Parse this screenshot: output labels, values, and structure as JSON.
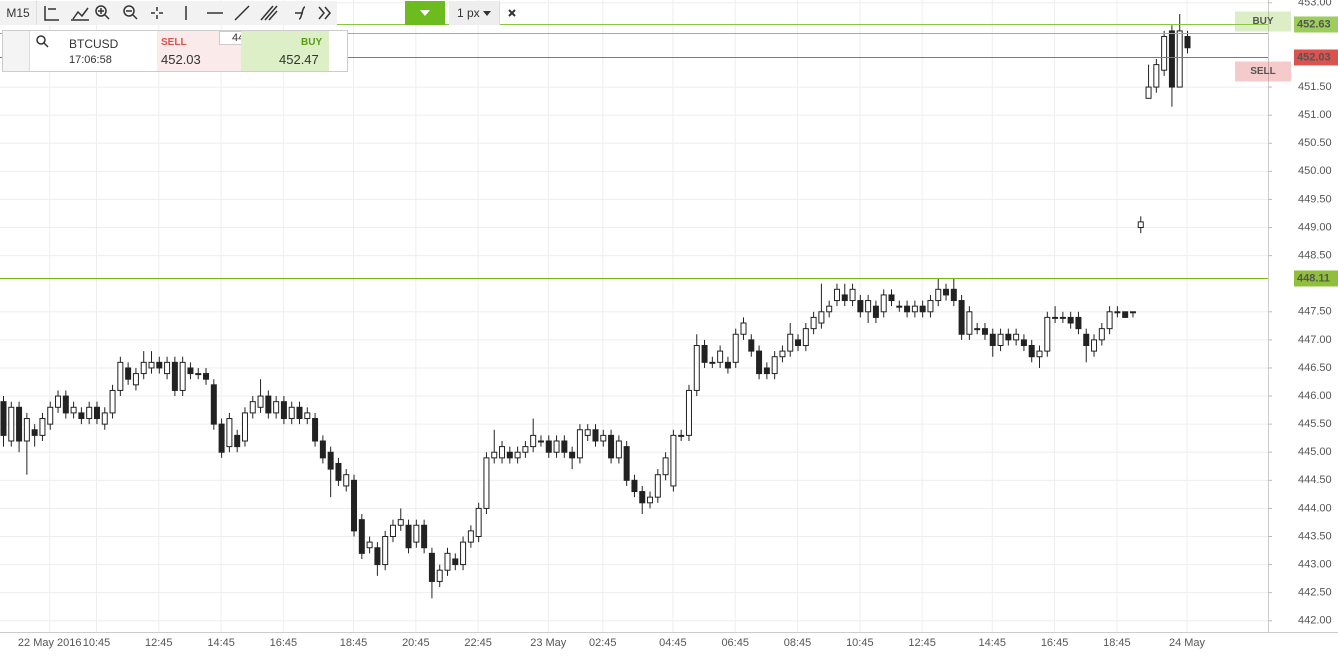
{
  "toolbar": {
    "timeframe": "M15",
    "line_width": "1 px"
  },
  "order_panel": {
    "symbol": "BTCUSD",
    "time": "17:06:58",
    "sell_label": "SELL",
    "sell_price": "452.03",
    "quantity": "44",
    "buy_label": "BUY",
    "buy_price": "452.47"
  },
  "chart_data": {
    "type": "candlestick",
    "up_color": "#ffffff",
    "down_color": "#222222",
    "grid": true,
    "categories": [
      null,
      null,
      null,
      null,
      null,
      null,
      "22 May 2016",
      null,
      null,
      null,
      null,
      null,
      "10:45",
      null,
      null,
      null,
      null,
      null,
      null,
      null,
      "12:45",
      null,
      null,
      null,
      null,
      null,
      null,
      null,
      "14:45",
      null,
      null,
      null,
      null,
      null,
      null,
      null,
      "16:45",
      null,
      null,
      null,
      null,
      null,
      null,
      null,
      null,
      "18:45",
      null,
      null,
      null,
      null,
      null,
      null,
      null,
      "20:45",
      null,
      null,
      null,
      null,
      null,
      null,
      null,
      "22:45",
      null,
      null,
      null,
      null,
      null,
      null,
      null,
      null,
      "23 May",
      null,
      null,
      null,
      null,
      null,
      null,
      "02:45",
      null,
      null,
      null,
      null,
      null,
      null,
      null,
      null,
      "04:45",
      null,
      null,
      null,
      null,
      null,
      null,
      null,
      "06:45",
      null,
      null,
      null,
      null,
      null,
      null,
      null,
      "08:45",
      null,
      null,
      null,
      null,
      null,
      null,
      null,
      "10:45",
      null,
      null,
      null,
      null,
      null,
      null,
      null,
      "12:45",
      null,
      null,
      null,
      null,
      null,
      null,
      null,
      null,
      "14:45",
      null,
      null,
      null,
      null,
      null,
      null,
      null,
      "16:45",
      null,
      null,
      null,
      null,
      null,
      null,
      null,
      "18:45",
      null,
      null,
      null,
      null,
      null,
      null,
      null,
      null,
      "24 May"
    ],
    "open": [
      445.9,
      445.2,
      445.8,
      445.2,
      445.4,
      445.3,
      445.5,
      445.8,
      446.0,
      445.7,
      445.7,
      445.6,
      445.8,
      445.5,
      445.7,
      446.1,
      446.5,
      446.2,
      446.4,
      446.5,
      446.6,
      446.4,
      446.6,
      446.1,
      446.5,
      446.4,
      446.4,
      446.2,
      445.5,
      445.1,
      445.3,
      445.2,
      445.7,
      445.8,
      446.0,
      445.7,
      445.9,
      445.6,
      445.8,
      445.6,
      445.6,
      445.2,
      445.0,
      444.8,
      444.4,
      444.5,
      443.8,
      443.3,
      443.3,
      443.0,
      443.5,
      443.7,
      443.7,
      443.4,
      443.7,
      443.2,
      442.7,
      442.9,
      443.1,
      443.0,
      443.4,
      443.5,
      444.0,
      444.9,
      444.9,
      445.0,
      444.9,
      445.0,
      445.1,
      445.2,
      445.2,
      445.0,
      445.2,
      445.0,
      444.9,
      445.3,
      445.4,
      445.2,
      445.3,
      444.9,
      445.1,
      444.5,
      444.3,
      444.1,
      444.2,
      444.6,
      444.4,
      445.3,
      445.3,
      446.1,
      446.9,
      446.6,
      446.6,
      446.6,
      446.6,
      447.1,
      447.0,
      446.8,
      446.5,
      446.4,
      446.7,
      446.8,
      447.0,
      446.9,
      447.2,
      447.3,
      447.5,
      447.7,
      447.8,
      447.7,
      447.7,
      447.5,
      447.6,
      447.5,
      447.8,
      447.6,
      447.6,
      447.5,
      447.6,
      447.5,
      447.7,
      447.9,
      447.9,
      447.7,
      447.1,
      447.2,
      447.2,
      447.1,
      446.9,
      447.1,
      447.0,
      447.0,
      446.9,
      446.7,
      446.8,
      447.4,
      447.4,
      447.4,
      447.4,
      447.1,
      446.8,
      447.0,
      447.2,
      447.5,
      447.5,
      447.5,
      449.0,
      451.3,
      451.5,
      451.8,
      452.5,
      451.5,
      452.4
    ],
    "high": [
      446.0,
      445.9,
      445.9,
      445.7,
      445.5,
      445.7,
      445.9,
      446.1,
      446.1,
      445.9,
      445.8,
      445.9,
      445.9,
      445.8,
      446.2,
      446.7,
      446.6,
      446.5,
      446.8,
      446.8,
      446.7,
      446.7,
      446.7,
      446.7,
      446.6,
      446.5,
      446.5,
      446.3,
      445.6,
      445.7,
      445.4,
      445.8,
      446.0,
      446.3,
      446.1,
      446.0,
      446.0,
      445.9,
      445.9,
      445.8,
      445.7,
      445.3,
      445.1,
      444.9,
      444.7,
      444.6,
      443.9,
      443.5,
      443.4,
      443.6,
      443.8,
      444.0,
      443.8,
      443.8,
      443.8,
      443.3,
      443.0,
      443.3,
      443.2,
      443.5,
      443.7,
      444.1,
      445.0,
      445.4,
      445.2,
      445.1,
      445.1,
      445.2,
      445.6,
      445.3,
      445.3,
      445.3,
      445.3,
      445.1,
      445.5,
      445.5,
      445.5,
      445.4,
      445.4,
      445.3,
      445.2,
      444.6,
      444.4,
      444.3,
      444.7,
      445.0,
      445.4,
      445.4,
      446.2,
      447.1,
      447.0,
      446.7,
      446.9,
      446.7,
      447.2,
      447.4,
      447.1,
      446.9,
      446.6,
      446.8,
      446.9,
      447.3,
      447.1,
      447.3,
      447.5,
      448.0,
      447.7,
      448.0,
      448.0,
      448.0,
      447.8,
      447.8,
      447.7,
      447.9,
      447.9,
      447.7,
      447.7,
      447.7,
      447.7,
      447.8,
      448.1,
      448.0,
      448.1,
      447.8,
      447.6,
      447.3,
      447.3,
      447.2,
      447.2,
      447.2,
      447.2,
      447.1,
      447.0,
      446.9,
      447.5,
      447.6,
      447.5,
      447.5,
      447.5,
      447.2,
      447.1,
      447.3,
      447.6,
      447.6,
      447.5,
      447.5,
      449.2,
      451.9,
      452.0,
      452.5,
      452.6,
      452.8,
      452.5
    ],
    "low": [
      445.1,
      445.1,
      445.0,
      444.6,
      445.1,
      445.2,
      445.4,
      445.7,
      445.6,
      445.6,
      445.5,
      445.5,
      445.5,
      445.4,
      445.6,
      446.0,
      446.2,
      446.1,
      446.3,
      446.4,
      446.4,
      446.3,
      446.0,
      446.0,
      446.3,
      446.3,
      446.2,
      445.4,
      444.9,
      445.0,
      445.0,
      445.1,
      445.6,
      445.7,
      445.6,
      445.6,
      445.5,
      445.5,
      445.5,
      445.5,
      445.1,
      444.8,
      444.2,
      444.4,
      444.3,
      443.5,
      443.1,
      443.2,
      442.8,
      442.9,
      443.4,
      443.6,
      443.2,
      443.3,
      443.2,
      442.4,
      442.6,
      442.8,
      442.9,
      442.9,
      443.3,
      443.4,
      443.9,
      444.8,
      444.8,
      444.8,
      444.8,
      444.9,
      445.0,
      445.1,
      444.9,
      444.9,
      444.9,
      444.7,
      444.8,
      445.2,
      445.1,
      445.1,
      444.8,
      444.8,
      444.4,
      444.2,
      443.9,
      444.0,
      444.1,
      444.5,
      444.3,
      445.2,
      445.2,
      446.0,
      446.5,
      446.5,
      446.5,
      446.4,
      446.5,
      447.0,
      446.7,
      446.3,
      446.3,
      446.3,
      446.6,
      446.7,
      446.8,
      446.8,
      447.1,
      447.2,
      447.4,
      447.6,
      447.6,
      447.6,
      447.4,
      447.3,
      447.3,
      447.4,
      447.6,
      447.5,
      447.4,
      447.4,
      447.4,
      447.4,
      447.6,
      447.7,
      447.6,
      447.0,
      447.0,
      447.1,
      447.0,
      446.7,
      446.8,
      446.9,
      446.9,
      446.8,
      446.6,
      446.5,
      446.7,
      447.3,
      447.3,
      447.2,
      447.1,
      446.6,
      446.7,
      446.9,
      447.1,
      447.4,
      447.4,
      447.4,
      448.9,
      451.3,
      451.4,
      451.7,
      451.15,
      451.5,
      452.1
    ],
    "close": [
      445.3,
      445.8,
      445.2,
      445.6,
      445.3,
      445.6,
      445.8,
      446.0,
      445.7,
      445.8,
      445.6,
      445.8,
      445.6,
      445.7,
      446.1,
      446.6,
      446.3,
      446.4,
      446.6,
      446.6,
      446.5,
      446.6,
      446.1,
      446.6,
      446.4,
      446.4,
      446.3,
      445.5,
      445.0,
      445.6,
      445.1,
      445.7,
      445.9,
      446.0,
      445.7,
      445.9,
      445.6,
      445.8,
      445.6,
      445.7,
      445.2,
      444.9,
      444.7,
      444.5,
      444.6,
      443.6,
      443.2,
      443.4,
      443.0,
      443.5,
      443.7,
      443.8,
      443.3,
      443.7,
      443.3,
      442.7,
      442.9,
      443.2,
      443.0,
      443.4,
      443.6,
      444.0,
      444.9,
      445.0,
      445.1,
      444.9,
      445.0,
      445.1,
      445.3,
      445.2,
      445.0,
      445.2,
      445.0,
      444.9,
      445.4,
      445.4,
      445.2,
      445.3,
      444.9,
      445.2,
      444.5,
      444.3,
      444.1,
      444.2,
      444.6,
      444.9,
      445.3,
      445.3,
      446.1,
      446.9,
      446.6,
      446.6,
      446.8,
      446.5,
      447.1,
      447.3,
      446.8,
      446.4,
      446.4,
      446.7,
      446.8,
      447.1,
      446.9,
      447.2,
      447.4,
      447.5,
      447.6,
      447.9,
      447.7,
      447.9,
      447.5,
      447.7,
      447.4,
      447.8,
      447.7,
      447.6,
      447.5,
      447.6,
      447.5,
      447.7,
      447.9,
      447.8,
      447.7,
      447.1,
      447.5,
      447.2,
      447.1,
      446.9,
      447.1,
      447.0,
      447.1,
      446.9,
      446.7,
      446.8,
      447.4,
      447.4,
      447.4,
      447.3,
      447.2,
      446.9,
      447.0,
      447.2,
      447.5,
      447.5,
      447.4,
      447.5,
      449.1,
      451.5,
      451.9,
      452.4,
      451.5,
      452.5,
      452.2
    ],
    "ylim": [
      441.8,
      453.05
    ],
    "yticks": [
      {
        "value": 453,
        "label": "453.00"
      },
      {
        "value": 451.5,
        "label": "451.50"
      },
      {
        "value": 451,
        "label": "451.00"
      },
      {
        "value": 450.5,
        "label": "450.50"
      },
      {
        "value": 450,
        "label": "450.00"
      },
      {
        "value": 449.5,
        "label": "449.50"
      },
      {
        "value": 449,
        "label": "449.00"
      },
      {
        "value": 448.5,
        "label": "448.50"
      },
      {
        "value": 447.5,
        "label": "447.50"
      },
      {
        "value": 447,
        "label": "447.00"
      },
      {
        "value": 446.5,
        "label": "446.50"
      },
      {
        "value": 446,
        "label": "446.00"
      },
      {
        "value": 445.5,
        "label": "445.50"
      },
      {
        "value": 445,
        "label": "445.00"
      },
      {
        "value": 444.5,
        "label": "444.50"
      },
      {
        "value": 444,
        "label": "444.00"
      },
      {
        "value": 443.5,
        "label": "443.50"
      },
      {
        "value": 443,
        "label": "443.00"
      },
      {
        "value": 442.5,
        "label": "442.50"
      },
      {
        "value": 442,
        "label": "442.00"
      }
    ],
    "levels": [
      {
        "name": "BUY",
        "value": 452.63,
        "color": "#8cc63f"
      },
      {
        "value": 452.47,
        "color": "#c9b800"
      },
      {
        "name": "SELL",
        "value": 452.03,
        "color": "#d9534f"
      },
      {
        "value": 448.11,
        "color": "#7cb518"
      }
    ]
  }
}
